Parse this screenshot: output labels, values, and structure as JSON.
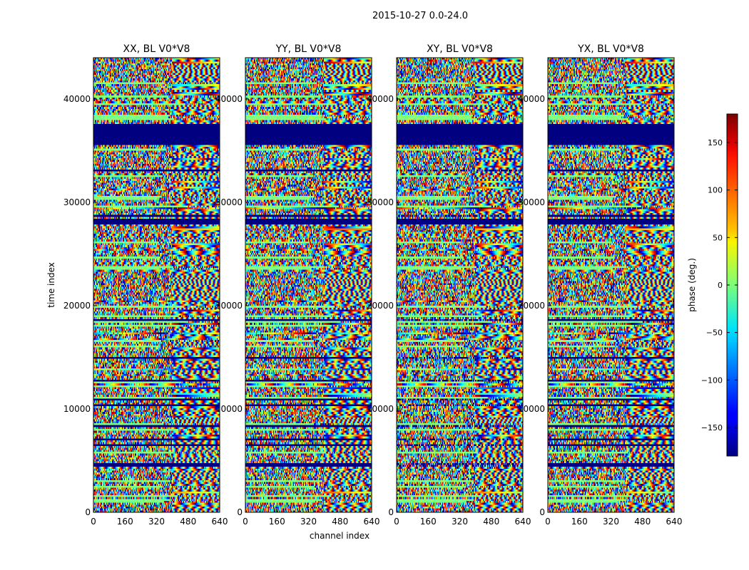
{
  "chart_data": {
    "type": "heatmap",
    "suptitle": "2015-10-27 0.0-24.0",
    "xlabel": "channel index",
    "ylabel": "time index",
    "xlim": [
      0,
      640
    ],
    "ylim": [
      0,
      44000
    ],
    "xticks": [
      0,
      160,
      320,
      480,
      640
    ],
    "yticks": [
      0,
      10000,
      20000,
      30000,
      40000
    ],
    "panels": [
      {
        "title": "XX, BL V0*V8"
      },
      {
        "title": "YY, BL V0*V8"
      },
      {
        "title": "XY, BL V0*V8"
      },
      {
        "title": "YX, BL V0*V8"
      }
    ],
    "colorbar": {
      "label": "phase (deg.)",
      "range": [
        -180,
        180
      ],
      "ticks": [
        -150,
        -100,
        -50,
        0,
        50,
        100,
        150
      ],
      "tick_labels": [
        "−150",
        "−100",
        "−50",
        "0",
        "50",
        "100",
        "150"
      ],
      "colormap": "jet"
    },
    "flagged_bands": [
      [
        35600,
        37600
      ],
      [
        27800,
        28400
      ]
    ]
  }
}
